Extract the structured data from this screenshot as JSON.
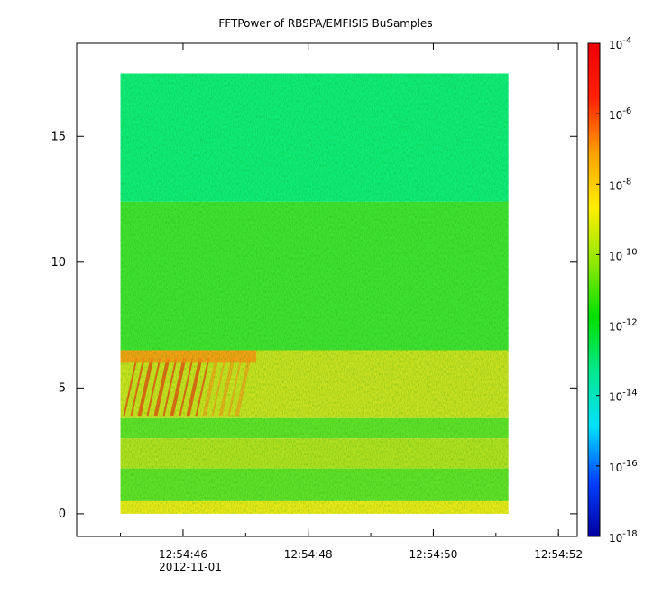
{
  "chart_data": {
    "type": "heatmap",
    "title": "FFTPower of RBSPA/EMFISIS  BuSamples",
    "xlabel": "",
    "ylabel": "",
    "date_label": "2012-11-01",
    "x_ticks": [
      "12:54:46",
      "12:54:48",
      "12:54:50",
      "12:54:52"
    ],
    "x_range": [
      "12:54:44.3",
      "12:54:52.3"
    ],
    "data_time_range": [
      "12:54:45.0",
      "12:54:51.2"
    ],
    "y_ticks": [
      0,
      5,
      10,
      15
    ],
    "ylim": [
      -0.9,
      18.7
    ],
    "data_y_range": [
      0,
      17.5
    ],
    "colorbar": {
      "scale": "log",
      "range": [
        1e-18,
        0.0001
      ],
      "tick_labels": [
        {
          "base": "10",
          "exp": "-4"
        },
        {
          "base": "10",
          "exp": "-6"
        },
        {
          "base": "10",
          "exp": "-8"
        },
        {
          "base": "10",
          "exp": "-10"
        },
        {
          "base": "10",
          "exp": "-12"
        },
        {
          "base": "10",
          "exp": "-14"
        },
        {
          "base": "10",
          "exp": "-16"
        },
        {
          "base": "10",
          "exp": "-18"
        }
      ],
      "colors": [
        "#0000a0",
        "#0040ff",
        "#00e0ff",
        "#00e890",
        "#00e000",
        "#90e800",
        "#ffee00",
        "#ffa000",
        "#ff2000",
        "#ee0000"
      ]
    },
    "bands": [
      {
        "y_from": 12.4,
        "y_to": 17.5,
        "level": "1e-12",
        "color": "#10ea78"
      },
      {
        "y_from": 6.5,
        "y_to": 12.4,
        "level": "1e-10",
        "color": "#40e030"
      },
      {
        "y_from": 3.8,
        "y_to": 6.5,
        "level": "1e-8",
        "color": "#c8e020"
      },
      {
        "y_from": 3.0,
        "y_to": 3.8,
        "level": "1e-10",
        "color": "#60e028"
      },
      {
        "y_from": 1.8,
        "y_to": 3.0,
        "level": "1e-9",
        "color": "#b0e020"
      },
      {
        "y_from": 0.5,
        "y_to": 1.8,
        "level": "1e-10",
        "color": "#60e028"
      },
      {
        "y_from": 0.0,
        "y_to": 0.5,
        "level": "1e-8",
        "color": "#e8e818"
      }
    ]
  }
}
